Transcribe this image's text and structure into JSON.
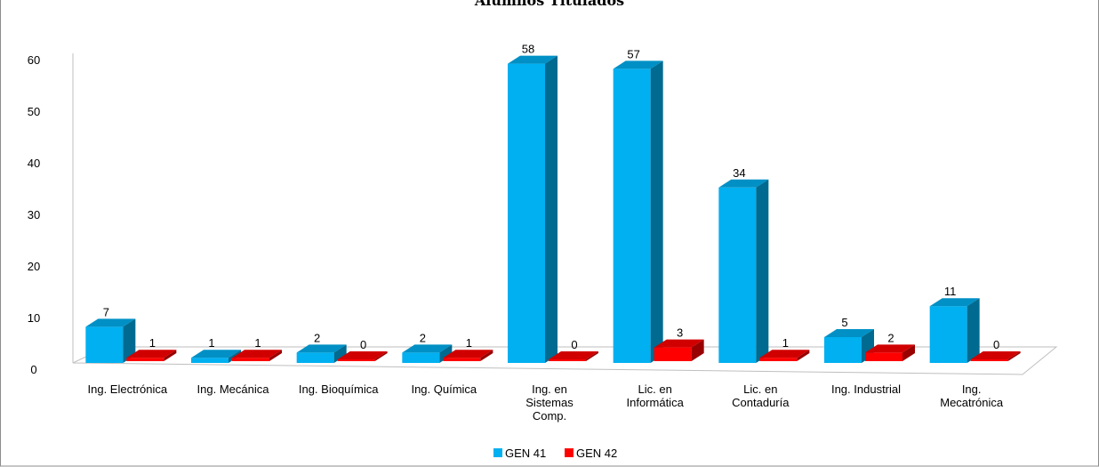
{
  "chart_data": {
    "type": "bar",
    "title": "Alumnos Titulados",
    "xlabel": "",
    "ylabel": "",
    "ylim": [
      0,
      60
    ],
    "yticks": [
      "0",
      "10",
      "20",
      "30",
      "40",
      "50",
      "60"
    ],
    "categories": [
      [
        "Ing. Electrónica"
      ],
      [
        "Ing. Mecánica"
      ],
      [
        "Ing. Bioquímica"
      ],
      [
        "Ing. Química"
      ],
      [
        "Ing. en",
        "Sistemas",
        "Comp."
      ],
      [
        "Lic. en",
        "Informática"
      ],
      [
        "Lic. en",
        "Contaduría"
      ],
      [
        "Ing. Industrial"
      ],
      [
        "Ing.",
        "Mecatrónica"
      ]
    ],
    "series": [
      {
        "name": "GEN 41",
        "color": "#00B0F0",
        "values": [
          7,
          1,
          2,
          2,
          58,
          57,
          34,
          5,
          11
        ]
      },
      {
        "name": "GEN 42",
        "color": "#FF0000",
        "values": [
          1,
          1,
          0,
          1,
          0,
          3,
          1,
          2,
          0
        ]
      }
    ],
    "legend_position": "bottom",
    "grid": false
  }
}
